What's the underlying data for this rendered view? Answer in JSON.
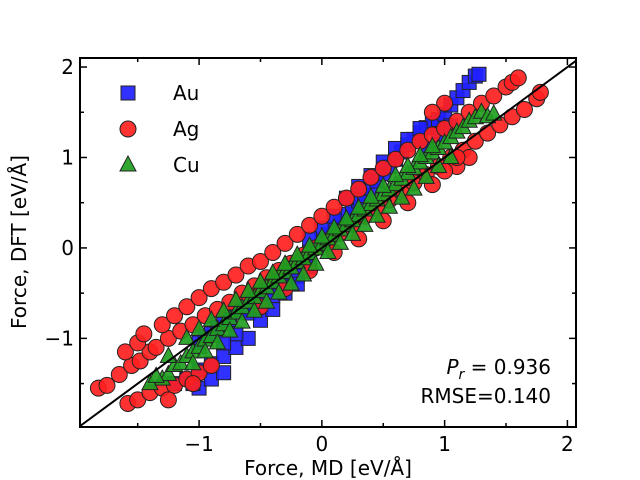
{
  "chart_data": {
    "type": "scatter",
    "title": "",
    "xlabel": "Force, MD [eV/Å]",
    "ylabel": "Force, DFT [eV/Å]",
    "xlim": [
      -1.97,
      2.07
    ],
    "ylim": [
      -1.98,
      2.1
    ],
    "xticks": [
      -1,
      0,
      1,
      2
    ],
    "xtick_labels": [
      "−1",
      "0",
      "1",
      "2"
    ],
    "yticks": [
      -1,
      0,
      1,
      2
    ],
    "ytick_labels": [
      "−1",
      "0",
      "1",
      "2"
    ],
    "grid": false,
    "legend_position": "upper-left",
    "reference_line": "y = x",
    "series": [
      {
        "name": "Au",
        "marker": "square",
        "color": "#1f1fff",
        "points": [
          [
            -1.0,
            -1.05
          ],
          [
            -0.95,
            -0.98
          ],
          [
            -0.9,
            -0.95
          ],
          [
            -0.85,
            -0.88
          ],
          [
            -0.8,
            -0.8
          ],
          [
            -0.75,
            -0.79
          ],
          [
            -0.7,
            -0.71
          ],
          [
            -0.65,
            -0.68
          ],
          [
            -0.6,
            -0.6
          ],
          [
            -0.55,
            -0.56
          ],
          [
            -0.5,
            -0.5
          ],
          [
            -0.45,
            -0.44
          ],
          [
            -0.4,
            -0.38
          ],
          [
            -0.35,
            -0.33
          ],
          [
            -0.3,
            -0.27
          ],
          [
            -0.25,
            -0.22
          ],
          [
            -0.2,
            -0.17
          ],
          [
            -0.15,
            -0.12
          ],
          [
            -0.1,
            -0.05
          ],
          [
            -0.05,
            0.01
          ],
          [
            0.0,
            0.08
          ],
          [
            0.05,
            0.15
          ],
          [
            0.1,
            0.22
          ],
          [
            0.15,
            0.29
          ],
          [
            0.2,
            0.37
          ],
          [
            0.25,
            0.45
          ],
          [
            0.3,
            0.52
          ],
          [
            0.35,
            0.58
          ],
          [
            0.4,
            0.66
          ],
          [
            0.45,
            0.74
          ],
          [
            0.5,
            0.82
          ],
          [
            0.55,
            0.9
          ],
          [
            0.6,
            0.98
          ],
          [
            0.65,
            1.06
          ],
          [
            0.7,
            1.14
          ],
          [
            0.75,
            1.2
          ],
          [
            0.8,
            1.27
          ],
          [
            0.85,
            1.33
          ],
          [
            0.9,
            1.38
          ],
          [
            0.95,
            1.42
          ],
          [
            1.0,
            1.48
          ],
          [
            1.05,
            1.58
          ],
          [
            1.1,
            1.66
          ],
          [
            1.15,
            1.74
          ],
          [
            1.2,
            1.83
          ],
          [
            1.25,
            1.9
          ],
          [
            1.28,
            1.92
          ],
          [
            -0.6,
            -0.72
          ],
          [
            -0.5,
            -0.65
          ],
          [
            -0.4,
            -0.53
          ],
          [
            -0.3,
            -0.42
          ],
          [
            -0.2,
            -0.31
          ],
          [
            -0.1,
            -0.21
          ],
          [
            -1.2,
            -1.5
          ],
          [
            -1.1,
            -1.45
          ],
          [
            -1.0,
            -1.35
          ],
          [
            -0.9,
            -1.28
          ],
          [
            -0.8,
            -1.2
          ],
          [
            -0.7,
            -1.1
          ],
          [
            -0.6,
            -1.0
          ],
          [
            -1.0,
            -1.55
          ],
          [
            -0.9,
            -1.45
          ],
          [
            -0.8,
            -1.38
          ],
          [
            -1.05,
            -1.5
          ],
          [
            0.2,
            0.55
          ],
          [
            0.3,
            0.68
          ],
          [
            0.4,
            0.8
          ],
          [
            0.5,
            0.95
          ],
          [
            0.6,
            1.1
          ],
          [
            0.7,
            1.2
          ],
          [
            0.8,
            1.32
          ],
          [
            0.0,
            0.22
          ],
          [
            -0.1,
            0.1
          ],
          [
            0.1,
            0.35
          ],
          [
            0.85,
            1.1
          ],
          [
            0.95,
            1.25
          ],
          [
            1.05,
            1.35
          ],
          [
            -0.3,
            -0.5
          ],
          [
            -0.2,
            -0.4
          ],
          [
            -0.5,
            -0.8
          ],
          [
            -0.4,
            -0.68
          ],
          [
            -0.7,
            -0.95
          ],
          [
            -0.8,
            -1.05
          ]
        ]
      },
      {
        "name": "Ag",
        "marker": "circle",
        "color": "#ff2020",
        "points": [
          [
            -1.82,
            -1.55
          ],
          [
            -1.75,
            -1.52
          ],
          [
            -1.65,
            -1.4
          ],
          [
            -1.55,
            -1.3
          ],
          [
            -1.48,
            -1.25
          ],
          [
            -1.4,
            -1.15
          ],
          [
            -1.35,
            -1.1
          ],
          [
            -1.25,
            -1.0
          ],
          [
            -1.15,
            -0.92
          ],
          [
            -1.05,
            -0.85
          ],
          [
            -0.95,
            -0.75
          ],
          [
            -0.85,
            -0.68
          ],
          [
            -0.75,
            -0.6
          ],
          [
            -0.65,
            -0.5
          ],
          [
            -0.55,
            -0.42
          ],
          [
            -0.45,
            -0.33
          ],
          [
            -0.35,
            -0.25
          ],
          [
            -0.25,
            -0.17
          ],
          [
            -0.15,
            -0.08
          ],
          [
            -0.05,
            0.0
          ],
          [
            0.05,
            0.08
          ],
          [
            0.15,
            0.17
          ],
          [
            0.25,
            0.26
          ],
          [
            0.35,
            0.35
          ],
          [
            0.45,
            0.44
          ],
          [
            0.55,
            0.53
          ],
          [
            0.65,
            0.62
          ],
          [
            0.75,
            0.72
          ],
          [
            0.85,
            0.81
          ],
          [
            0.95,
            0.9
          ],
          [
            1.05,
            1.0
          ],
          [
            1.15,
            1.08
          ],
          [
            1.25,
            1.18
          ],
          [
            1.35,
            1.27
          ],
          [
            1.45,
            1.36
          ],
          [
            1.55,
            1.45
          ],
          [
            1.65,
            1.53
          ],
          [
            1.75,
            1.65
          ],
          [
            1.78,
            1.72
          ],
          [
            -1.58,
            -1.72
          ],
          [
            -1.5,
            -1.68
          ],
          [
            -1.4,
            -1.6
          ],
          [
            -1.3,
            -1.55
          ],
          [
            -1.2,
            -1.52
          ],
          [
            -1.1,
            -1.45
          ],
          [
            -1.0,
            -1.38
          ],
          [
            -0.9,
            -1.3
          ],
          [
            -1.25,
            -1.68
          ],
          [
            -1.05,
            -1.5
          ],
          [
            -1.6,
            -1.15
          ],
          [
            -1.5,
            -1.05
          ],
          [
            -1.45,
            -0.95
          ],
          [
            -1.3,
            -0.85
          ],
          [
            -1.2,
            -0.75
          ],
          [
            -1.1,
            -0.65
          ],
          [
            -1.0,
            -0.55
          ],
          [
            -0.9,
            -0.45
          ],
          [
            -0.8,
            -0.38
          ],
          [
            -0.7,
            -0.3
          ],
          [
            -0.6,
            -0.2
          ],
          [
            -0.5,
            -0.15
          ],
          [
            -0.4,
            -0.05
          ],
          [
            -0.3,
            0.05
          ],
          [
            -0.2,
            0.15
          ],
          [
            -0.1,
            0.25
          ],
          [
            0.0,
            0.35
          ],
          [
            0.1,
            0.45
          ],
          [
            0.2,
            0.55
          ],
          [
            0.3,
            0.65
          ],
          [
            0.4,
            0.78
          ],
          [
            0.5,
            0.88
          ],
          [
            0.6,
            0.98
          ],
          [
            0.7,
            1.08
          ],
          [
            0.8,
            1.18
          ],
          [
            0.9,
            1.25
          ],
          [
            1.0,
            1.32
          ],
          [
            1.1,
            1.4
          ],
          [
            1.2,
            1.5
          ],
          [
            1.3,
            1.6
          ],
          [
            1.4,
            1.68
          ],
          [
            1.5,
            1.78
          ],
          [
            1.55,
            1.83
          ],
          [
            1.6,
            1.88
          ],
          [
            0.3,
            0.1
          ],
          [
            0.5,
            0.3
          ],
          [
            0.7,
            0.5
          ],
          [
            0.9,
            0.7
          ],
          [
            1.1,
            0.9
          ],
          [
            1.2,
            1.0
          ],
          [
            -0.5,
            -0.65
          ],
          [
            -0.3,
            -0.45
          ],
          [
            -0.1,
            -0.25
          ],
          [
            0.1,
            -0.05
          ],
          [
            1.0,
            1.6
          ],
          [
            0.9,
            1.5
          ],
          [
            1.1,
            1.0
          ],
          [
            1.0,
            0.85
          ]
        ]
      },
      {
        "name": "Cu",
        "marker": "triangle",
        "color": "#1fa01f",
        "points": [
          [
            -1.3,
            -1.45
          ],
          [
            -1.25,
            -1.4
          ],
          [
            -1.2,
            -1.3
          ],
          [
            -1.15,
            -1.28
          ],
          [
            -1.1,
            -1.2
          ],
          [
            -1.05,
            -1.15
          ],
          [
            -1.0,
            -1.1
          ],
          [
            -0.95,
            -1.02
          ],
          [
            -0.9,
            -0.98
          ],
          [
            -0.85,
            -0.9
          ],
          [
            -0.8,
            -0.85
          ],
          [
            -0.75,
            -0.78
          ],
          [
            -0.7,
            -0.72
          ],
          [
            -0.65,
            -0.66
          ],
          [
            -0.6,
            -0.6
          ],
          [
            -0.55,
            -0.55
          ],
          [
            -0.5,
            -0.48
          ],
          [
            -0.45,
            -0.44
          ],
          [
            -0.4,
            -0.38
          ],
          [
            -0.35,
            -0.32
          ],
          [
            -0.3,
            -0.27
          ],
          [
            -0.25,
            -0.22
          ],
          [
            -0.2,
            -0.16
          ],
          [
            -0.15,
            -0.12
          ],
          [
            -0.1,
            -0.06
          ],
          [
            -0.05,
            -0.01
          ],
          [
            0.0,
            0.04
          ],
          [
            0.05,
            0.1
          ],
          [
            0.1,
            0.14
          ],
          [
            0.15,
            0.2
          ],
          [
            0.2,
            0.25
          ],
          [
            0.25,
            0.3
          ],
          [
            0.3,
            0.36
          ],
          [
            0.35,
            0.42
          ],
          [
            0.4,
            0.48
          ],
          [
            0.45,
            0.53
          ],
          [
            0.5,
            0.59
          ],
          [
            0.55,
            0.64
          ],
          [
            0.6,
            0.7
          ],
          [
            0.65,
            0.76
          ],
          [
            0.7,
            0.82
          ],
          [
            0.75,
            0.88
          ],
          [
            0.8,
            0.94
          ],
          [
            0.85,
            1.0
          ],
          [
            0.9,
            1.05
          ],
          [
            0.95,
            1.1
          ],
          [
            1.0,
            1.16
          ],
          [
            1.05,
            1.22
          ],
          [
            1.1,
            1.28
          ],
          [
            1.15,
            1.33
          ],
          [
            1.2,
            1.4
          ],
          [
            1.25,
            1.44
          ],
          [
            1.3,
            1.5
          ],
          [
            -1.25,
            -1.2
          ],
          [
            -1.1,
            -1.0
          ],
          [
            -1.0,
            -0.9
          ],
          [
            -0.9,
            -0.8
          ],
          [
            -0.8,
            -0.7
          ],
          [
            -0.7,
            -0.58
          ],
          [
            -0.6,
            -0.48
          ],
          [
            -0.5,
            -0.38
          ],
          [
            -0.4,
            -0.28
          ],
          [
            -0.3,
            -0.18
          ],
          [
            -0.2,
            -0.08
          ],
          [
            -0.1,
            0.02
          ],
          [
            0.0,
            0.12
          ],
          [
            0.1,
            0.22
          ],
          [
            0.2,
            0.32
          ],
          [
            0.3,
            0.44
          ],
          [
            0.4,
            0.56
          ],
          [
            0.5,
            0.68
          ],
          [
            0.6,
            0.8
          ],
          [
            0.7,
            0.9
          ],
          [
            0.8,
            1.02
          ],
          [
            0.9,
            1.12
          ],
          [
            -1.05,
            -1.28
          ],
          [
            -0.95,
            -1.15
          ],
          [
            -0.85,
            -1.05
          ],
          [
            -0.75,
            -0.92
          ],
          [
            -0.65,
            -0.82
          ],
          [
            -0.55,
            -0.7
          ],
          [
            -0.45,
            -0.6
          ],
          [
            -0.35,
            -0.5
          ],
          [
            -0.25,
            -0.4
          ],
          [
            -0.15,
            -0.3
          ],
          [
            -0.05,
            -0.18
          ],
          [
            0.05,
            -0.05
          ],
          [
            0.15,
            0.05
          ],
          [
            0.25,
            0.15
          ],
          [
            0.35,
            0.25
          ],
          [
            0.45,
            0.35
          ],
          [
            0.55,
            0.45
          ],
          [
            0.65,
            0.55
          ],
          [
            0.75,
            0.65
          ],
          [
            0.85,
            0.78
          ],
          [
            0.95,
            0.9
          ],
          [
            1.05,
            1.0
          ],
          [
            -1.4,
            -1.5
          ],
          [
            -1.35,
            -1.42
          ],
          [
            1.35,
            1.45
          ],
          [
            1.4,
            1.48
          ]
        ]
      }
    ],
    "annotations": {
      "pearson_label": "P",
      "pearson_subscript": "r",
      "pearson_value": " = 0.936",
      "rmse_text": "RMSE=0.140"
    }
  }
}
